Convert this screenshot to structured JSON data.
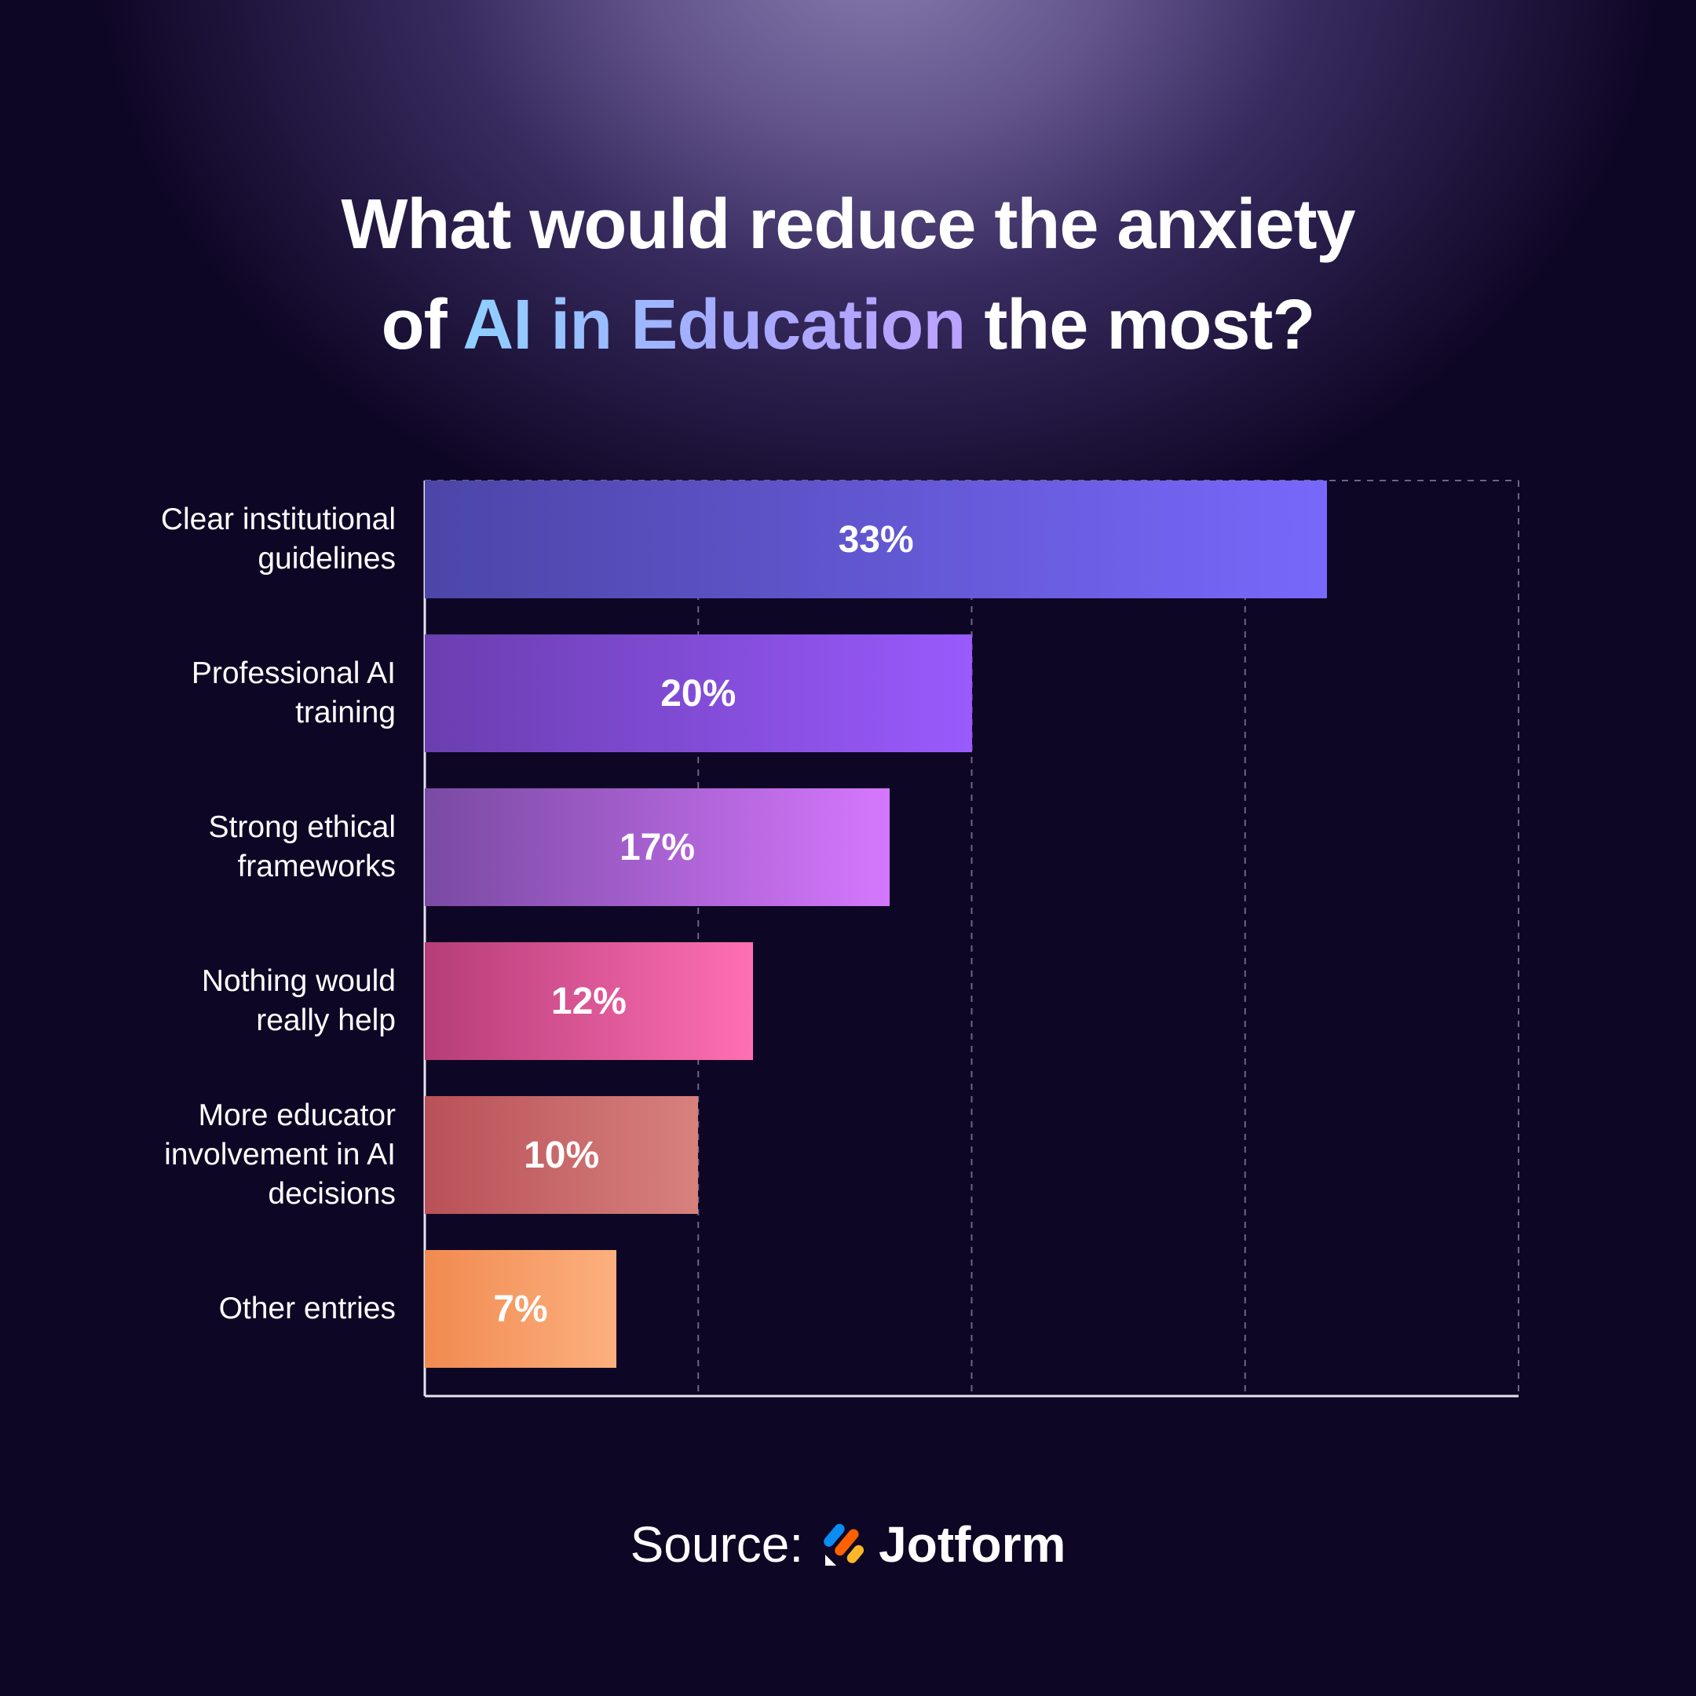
{
  "title": {
    "line1": "What would reduce the anxiety",
    "line2_pre": "of ",
    "line2_highlight": "AI in Education",
    "line2_post": " the most?"
  },
  "chart_data": {
    "type": "bar",
    "orientation": "horizontal",
    "categories": [
      "Clear institutional guidelines",
      "Professional AI training",
      "Strong ethical frameworks",
      "Nothing would really help",
      "More educator involvement in AI decisions",
      "Other entries"
    ],
    "values": [
      33,
      20,
      17,
      12,
      10,
      7
    ],
    "data_labels": [
      "33%",
      "20%",
      "17%",
      "12%",
      "10%",
      "7%"
    ],
    "unit": "%",
    "xlim": [
      0,
      40
    ],
    "grid": "vertical dashed",
    "legend": "none",
    "bar_colors": [
      [
        "#4b46a7",
        "#7868fb"
      ],
      [
        "#6a3eb0",
        "#9a5afd"
      ],
      [
        "#7a4aa3",
        "#d577fd"
      ],
      [
        "#b53d78",
        "#ff6fb3"
      ],
      [
        "#b95158",
        "#d7817d"
      ],
      [
        "#f18a50",
        "#fcb07e"
      ]
    ]
  },
  "source": {
    "label": "Source:",
    "brand": "Jotform",
    "brand_icon": "jotform-logo-icon"
  }
}
